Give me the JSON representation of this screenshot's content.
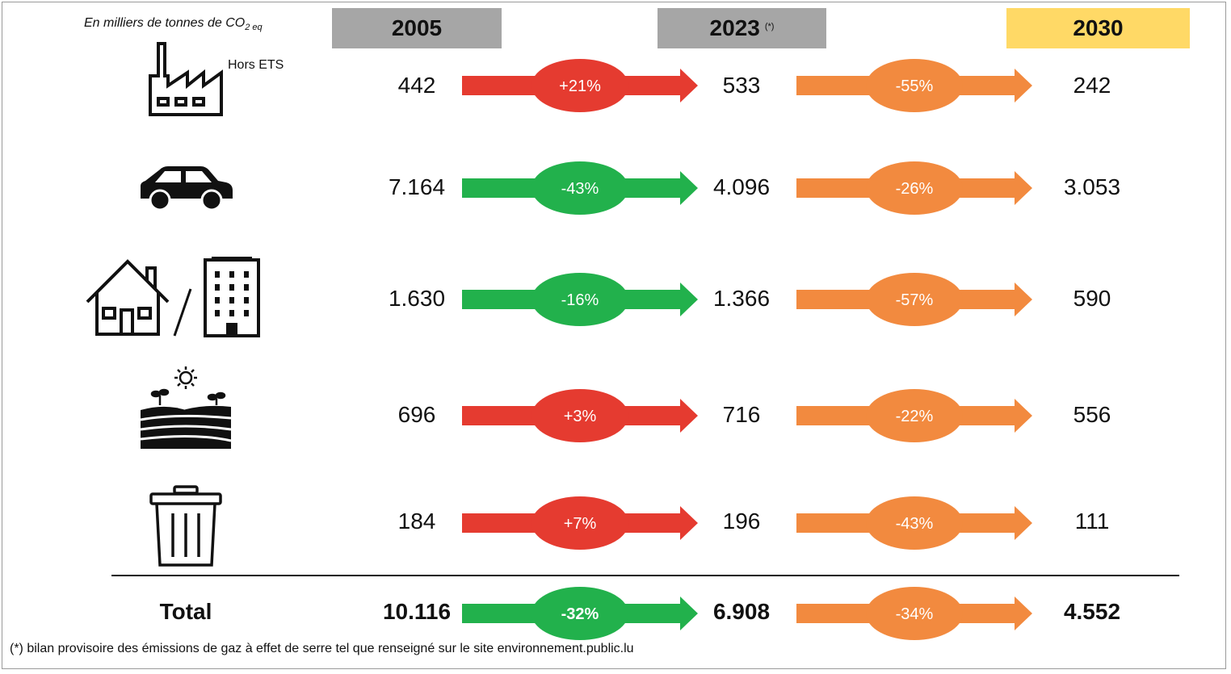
{
  "unit": {
    "text": "En milliers de tonnes de CO",
    "sub": "2 eq"
  },
  "headers": {
    "y2005": "2005",
    "y2023": "2023",
    "y2023_note": "(*)",
    "y2030": "2030"
  },
  "hors_ets": "Hors ETS",
  "colors": {
    "increase": "#e53b30",
    "decrease": "#22b14c",
    "target": "#f28a3f",
    "grey_header": "#a6a6a6",
    "yellow_header": "#ffd966"
  },
  "rows": [
    {
      "icon": "factory-icon",
      "v2005": "442",
      "change1": "+21%",
      "v2023": "533",
      "change2": "-55%",
      "v2030": "242",
      "trend1": "increase"
    },
    {
      "icon": "car-icon",
      "v2005": "7.164",
      "change1": "-43%",
      "v2023": "4.096",
      "change2": "-26%",
      "v2030": "3.053",
      "trend1": "decrease"
    },
    {
      "icon": "house-building-icon",
      "v2005": "1.630",
      "change1": "-16%",
      "v2023": "1.366",
      "change2": "-57%",
      "v2030": "590",
      "trend1": "decrease"
    },
    {
      "icon": "agriculture-field-icon",
      "v2005": "696",
      "change1": "+3%",
      "v2023": "716",
      "change2": "-22%",
      "v2030": "556",
      "trend1": "increase"
    },
    {
      "icon": "trash-bin-icon",
      "v2005": "184",
      "change1": "+7%",
      "v2023": "196",
      "change2": "-43%",
      "v2030": "111",
      "trend1": "increase"
    }
  ],
  "total": {
    "label": "Total",
    "v2005": "10.116",
    "change1": "-32%",
    "v2023": "6.908",
    "change2": "-34%",
    "v2030": "4.552",
    "trend1": "decrease"
  },
  "footnote": "(*) bilan provisoire des émissions de gaz à effet de serre tel que renseigné sur le site environnement.public.lu"
}
